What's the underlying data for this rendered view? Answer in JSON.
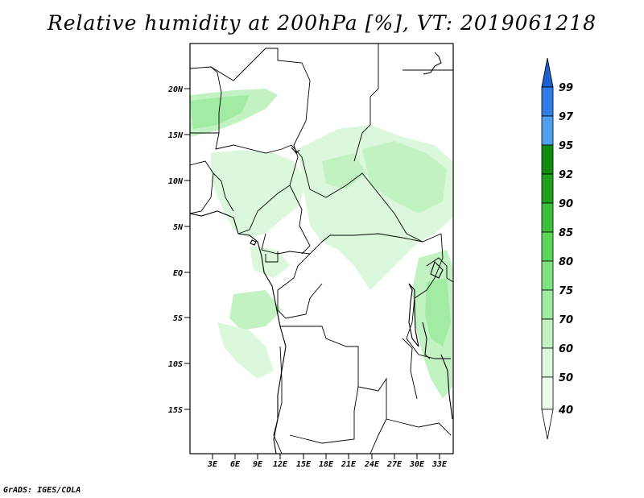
{
  "title": "Relative humidity at 200hPa [%], VT: 2019061218",
  "footer": "GrADS: IGES/COLA",
  "map": {
    "lat_labels": [
      "20N",
      "15N",
      "10N",
      "5N",
      "EQ",
      "5S",
      "10S",
      "15S"
    ],
    "lon_labels": [
      "3E",
      "6E",
      "9E",
      "12E",
      "15E",
      "18E",
      "21E",
      "24E",
      "27E",
      "30E",
      "33E"
    ]
  },
  "colorbar": {
    "labels": [
      "99",
      "97",
      "95",
      "92",
      "90",
      "85",
      "80",
      "75",
      "70",
      "60",
      "50",
      "40"
    ],
    "colors": [
      "#1e5fd0",
      "#2f7ee6",
      "#4da0f0",
      "#0f8c0f",
      "#1ea01e",
      "#3cbf3c",
      "#5ad85a",
      "#7ee27e",
      "#a2eba2",
      "#c2f2c2",
      "#dcf8dc",
      "#eefcee"
    ]
  }
}
